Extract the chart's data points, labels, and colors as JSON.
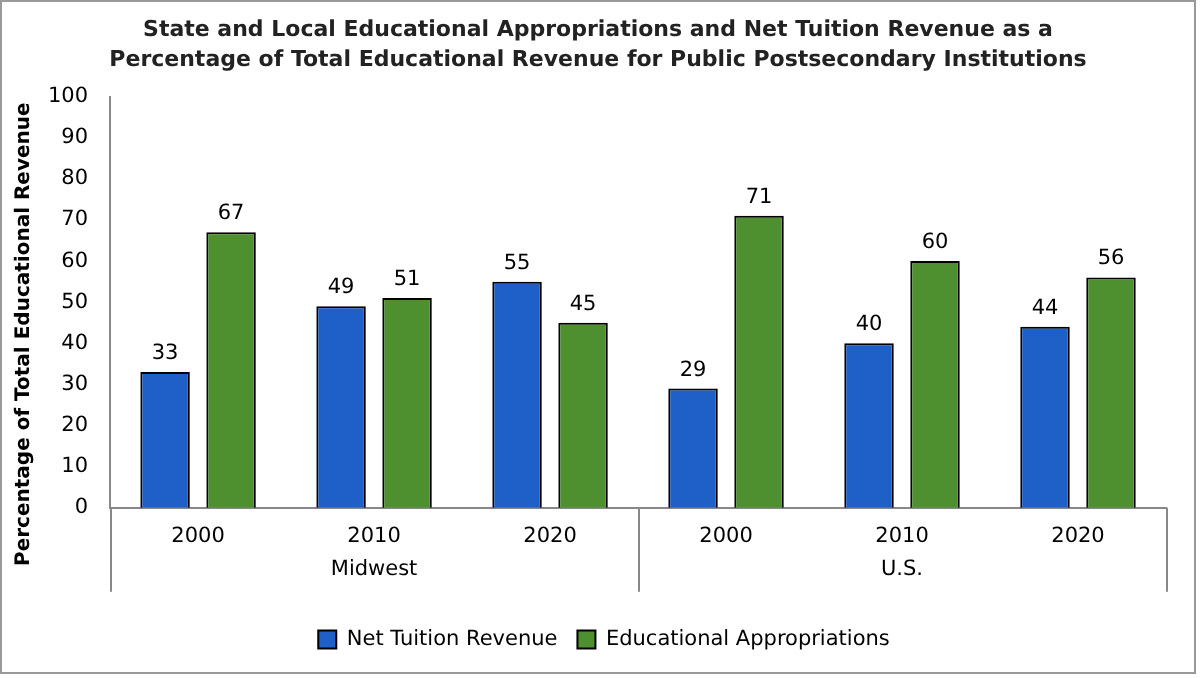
{
  "chart_data": {
    "type": "bar",
    "title": "State and Local Educational Appropriations and Net Tuition Revenue as a Percentage of Total Educational Revenue for Public Postsecondary Institutions",
    "ylabel": "Percentage of Total Educational Revenue",
    "categories": [
      "2000",
      "2010",
      "2020",
      "2000",
      "2010",
      "2020"
    ],
    "series": [
      {
        "name": "Net Tuition Revenue",
        "color": "#1f5fc8",
        "values": [
          33,
          49,
          55,
          29,
          40,
          44
        ]
      },
      {
        "name": "Educational Appropriations",
        "color": "#4e8f2f",
        "values": [
          67,
          51,
          45,
          71,
          60,
          56
        ]
      }
    ],
    "annotations": [
      "Midwest",
      "U.S."
    ],
    "ylim": [
      0,
      100
    ],
    "yticks": [
      0,
      10,
      20,
      30,
      40,
      50,
      60,
      70,
      80,
      90,
      100
    ],
    "grid": false,
    "legend": "bottom",
    "data_labels": true
  }
}
